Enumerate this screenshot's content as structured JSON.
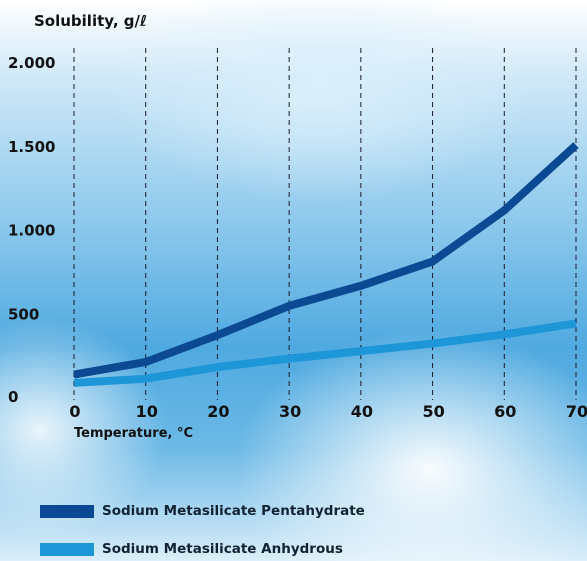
{
  "chart_data": {
    "type": "line",
    "title": "Solubility, g/ℓ",
    "xlabel": "Temperature, °C",
    "ylabel": "",
    "x": [
      0,
      10,
      20,
      30,
      40,
      50,
      60,
      70
    ],
    "xlim": [
      0,
      70
    ],
    "ylim": [
      0,
      2000
    ],
    "x_ticks": [
      "0",
      "10",
      "20",
      "30",
      "40",
      "50",
      "60",
      "70"
    ],
    "y_ticks": [
      {
        "value": 0,
        "label": "0"
      },
      {
        "value": 500,
        "label": "500"
      },
      {
        "value": 1000,
        "label": "1.000"
      },
      {
        "value": 1500,
        "label": "1.500"
      },
      {
        "value": 2000,
        "label": "2.000"
      }
    ],
    "grid": "vertical dashed",
    "legend_placement": "bottom",
    "series": [
      {
        "name": "Sodium Metasilicate Pentahydrate",
        "color": "#0b4a93",
        "values": [
          140,
          215,
          375,
          550,
          670,
          815,
          1120,
          1510
        ]
      },
      {
        "name": "Sodium Metasilicate Anhydrous",
        "color": "#1e97d8",
        "values": [
          90,
          115,
          185,
          235,
          280,
          325,
          380,
          445
        ]
      }
    ]
  }
}
